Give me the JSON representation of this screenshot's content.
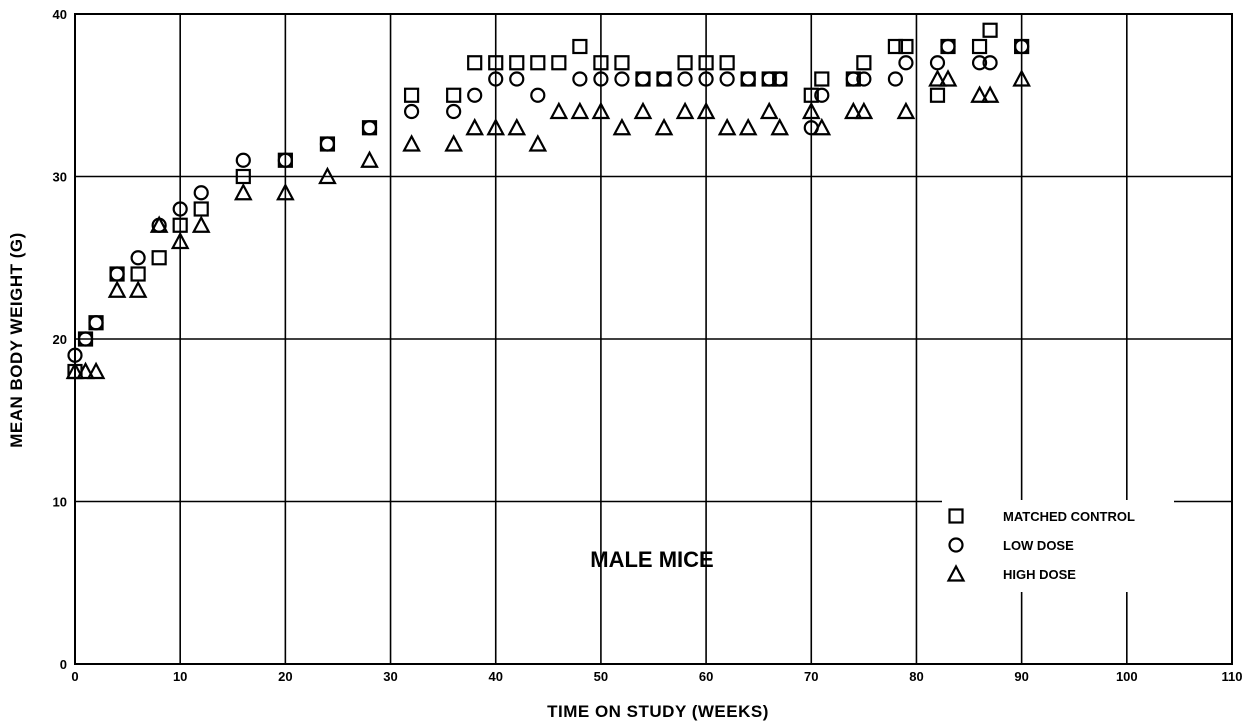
{
  "chart_data": {
    "type": "scatter",
    "title": "",
    "xlabel": "TIME ON STUDY (WEEKS)",
    "ylabel": "MEAN BODY WEIGHT (G)",
    "xlim": [
      0,
      110
    ],
    "ylim": [
      0,
      40
    ],
    "x_ticks": [
      0,
      10,
      20,
      30,
      40,
      50,
      60,
      70,
      80,
      90,
      100,
      110
    ],
    "y_ticks": [
      0,
      10,
      20,
      30,
      40
    ],
    "grid": true,
    "legend_position": "bottom-right",
    "annotation": "MALE MICE",
    "series": [
      {
        "name": "MATCHED CONTROL",
        "marker": "square",
        "x": [
          0,
          1,
          2,
          4,
          6,
          8,
          10,
          12,
          16,
          20,
          24,
          28,
          32,
          36,
          38,
          40,
          42,
          44,
          46,
          48,
          50,
          52,
          54,
          56,
          58,
          60,
          62,
          64,
          66,
          67,
          70,
          71,
          74,
          75,
          78,
          79,
          82,
          83,
          86,
          87,
          90
        ],
        "y": [
          18,
          20,
          21,
          24,
          24,
          25,
          27,
          28,
          30,
          31,
          32,
          33,
          35,
          35,
          37,
          37,
          37,
          37,
          37,
          38,
          37,
          37,
          36,
          36,
          37,
          37,
          37,
          36,
          36,
          36,
          35,
          36,
          36,
          37,
          38,
          38,
          35,
          38,
          38,
          39,
          38
        ]
      },
      {
        "name": "LOW DOSE",
        "marker": "circle",
        "x": [
          0,
          1,
          2,
          4,
          6,
          8,
          10,
          12,
          16,
          20,
          24,
          28,
          32,
          36,
          38,
          40,
          42,
          44,
          48,
          50,
          52,
          54,
          56,
          58,
          60,
          62,
          64,
          66,
          67,
          70,
          71,
          74,
          75,
          78,
          79,
          82,
          83,
          86,
          87,
          90
        ],
        "y": [
          19,
          20,
          21,
          24,
          25,
          27,
          28,
          29,
          31,
          31,
          32,
          33,
          34,
          34,
          35,
          36,
          36,
          35,
          36,
          36,
          36,
          36,
          36,
          36,
          36,
          36,
          36,
          36,
          36,
          33,
          35,
          36,
          36,
          36,
          37,
          37,
          38,
          37,
          37,
          38
        ]
      },
      {
        "name": "HIGH DOSE",
        "marker": "triangle",
        "x": [
          0,
          1,
          2,
          4,
          6,
          8,
          10,
          12,
          16,
          20,
          24,
          28,
          32,
          36,
          38,
          40,
          42,
          44,
          46,
          48,
          50,
          52,
          54,
          56,
          58,
          60,
          62,
          64,
          66,
          67,
          70,
          71,
          74,
          75,
          79,
          82,
          83,
          86,
          87,
          90
        ],
        "y": [
          18,
          18,
          18,
          23,
          23,
          27,
          26,
          27,
          29,
          29,
          30,
          31,
          32,
          32,
          33,
          33,
          33,
          32,
          34,
          34,
          34,
          33,
          34,
          33,
          34,
          34,
          33,
          33,
          34,
          33,
          34,
          33,
          34,
          34,
          34,
          36,
          36,
          35,
          35,
          36
        ]
      }
    ]
  }
}
